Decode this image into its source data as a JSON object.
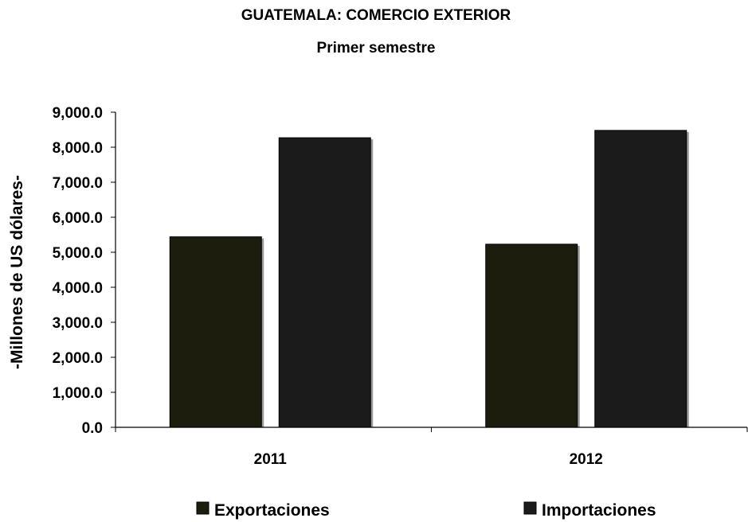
{
  "chart_data": {
    "type": "bar",
    "title": "GUATEMALA: COMERCIO EXTERIOR",
    "subtitle": "Primer semestre",
    "ylabel": "-Millones de US dólares-",
    "xlabel": "",
    "categories": [
      "2011",
      "2012"
    ],
    "series": [
      {
        "name": "Exportaciones",
        "color": "#1c1d0c",
        "values": [
          5440.0,
          5230.0
        ]
      },
      {
        "name": "Importaciones",
        "color": "#1b1b1b",
        "values": [
          8270.0,
          8480.0
        ]
      }
    ],
    "ylim": [
      0,
      9000
    ],
    "yticks": [
      "0.0",
      "1,000.0",
      "2,000.0",
      "3,000.0",
      "4,000.0",
      "5,000.0",
      "6,000.0",
      "7,000.0",
      "8,000.0",
      "9,000.0"
    ],
    "grid": false,
    "legend_position": "bottom"
  }
}
